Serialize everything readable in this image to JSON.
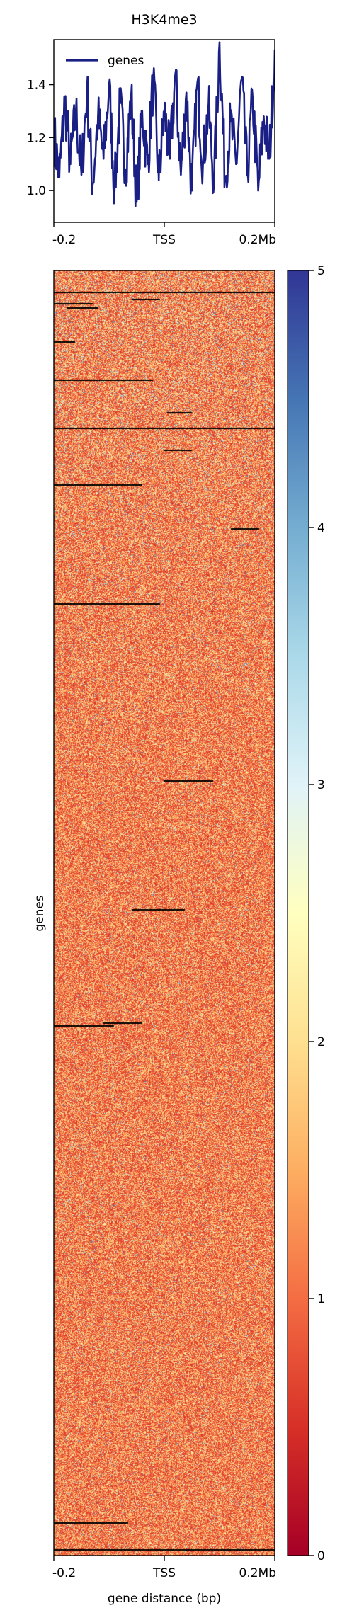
{
  "chart_data": [
    {
      "type": "line",
      "title": "H3K4me3",
      "xlabel": "",
      "ylabel": "",
      "x_tick_labels": [
        "-0.2",
        "TSS",
        "0.2Mb"
      ],
      "y_ticks": [
        1.0,
        1.2,
        1.4
      ],
      "y_tick_labels": [
        "1.0",
        "1.2",
        "1.4"
      ],
      "ylim": [
        0.88,
        1.57
      ],
      "legend": {
        "placement": "top-left",
        "entries": [
          "genes"
        ]
      },
      "series": [
        {
          "name": "genes",
          "color": "#1a1f85",
          "x": [
            -0.2,
            -0.19,
            -0.18,
            -0.17,
            -0.16,
            -0.15,
            -0.14,
            -0.13,
            -0.12,
            -0.11,
            -0.1,
            -0.09,
            -0.08,
            -0.07,
            -0.06,
            -0.05,
            -0.04,
            -0.03,
            -0.02,
            -0.01,
            0.0,
            0.01,
            0.02,
            0.03,
            0.04,
            0.05,
            0.06,
            0.07,
            0.08,
            0.09,
            0.1,
            0.11,
            0.12,
            0.13,
            0.14,
            0.15,
            0.16,
            0.17,
            0.18,
            0.19,
            0.2
          ],
          "values": [
            1.22,
            1.05,
            1.34,
            1.1,
            1.3,
            1.06,
            1.38,
            1.02,
            1.28,
            1.12,
            1.4,
            1.0,
            1.33,
            1.08,
            1.36,
            0.96,
            1.3,
            1.1,
            1.42,
            1.04,
            1.3,
            1.12,
            1.44,
            1.06,
            1.37,
            1.0,
            1.41,
            1.1,
            1.32,
            1.02,
            1.56,
            1.05,
            1.26,
            1.1,
            1.42,
            1.06,
            1.35,
            1.0,
            1.28,
            1.12,
            1.53
          ]
        }
      ]
    },
    {
      "type": "heatmap",
      "xlabel": "gene distance (bp)",
      "ylabel": "genes",
      "x_tick_labels": [
        "-0.2",
        "TSS",
        "0.2Mb"
      ],
      "colorbar": {
        "colormap": "RdYlBu",
        "range": [
          0,
          5
        ],
        "ticks": [
          0,
          1,
          2,
          3,
          4,
          5
        ],
        "tick_labels": [
          "0",
          "1",
          "2",
          "3",
          "4",
          "5"
        ],
        "stops": [
          "#a50026",
          "#d73027",
          "#f46d43",
          "#fdae61",
          "#fee090",
          "#ffffbf",
          "#e0f3f8",
          "#abd9e9",
          "#74add1",
          "#4575b4",
          "#313695"
        ]
      },
      "typical_value_range": [
        0.5,
        2.0
      ]
    }
  ]
}
